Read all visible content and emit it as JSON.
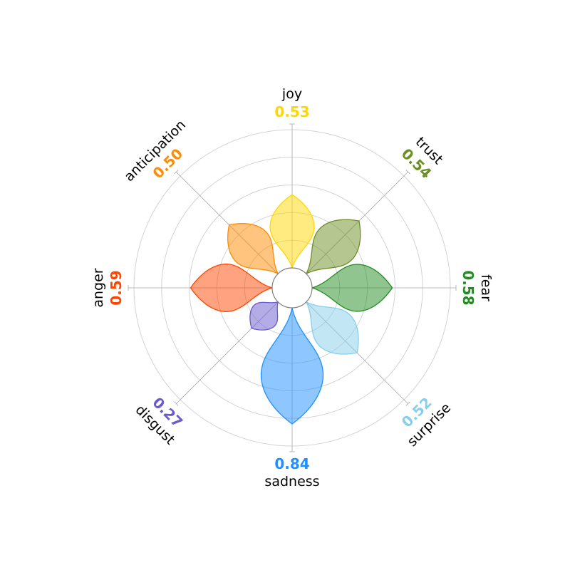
{
  "chart_data": {
    "type": "radar",
    "style": "plutchik-petals",
    "grid": true,
    "radial_max": 1.0,
    "rings": [
      0.2,
      0.4,
      0.6,
      0.8,
      1.0
    ],
    "categories": [
      "joy",
      "trust",
      "fear",
      "surprise",
      "sadness",
      "disgust",
      "anger",
      "anticipation"
    ],
    "series": [
      {
        "values": [
          0.53,
          0.54,
          0.58,
          0.52,
          0.84,
          0.27,
          0.59,
          0.5
        ]
      }
    ],
    "value_labels": [
      "0.53",
      "0.54",
      "0.58",
      "0.52",
      "0.84",
      "0.27",
      "0.59",
      "0.50"
    ],
    "colors": [
      "#FFD700",
      "#6B8E23",
      "#228B22",
      "#87CEEB",
      "#1E90FF",
      "#6A5ACD",
      "#FF4500",
      "#FF8C00"
    ]
  }
}
